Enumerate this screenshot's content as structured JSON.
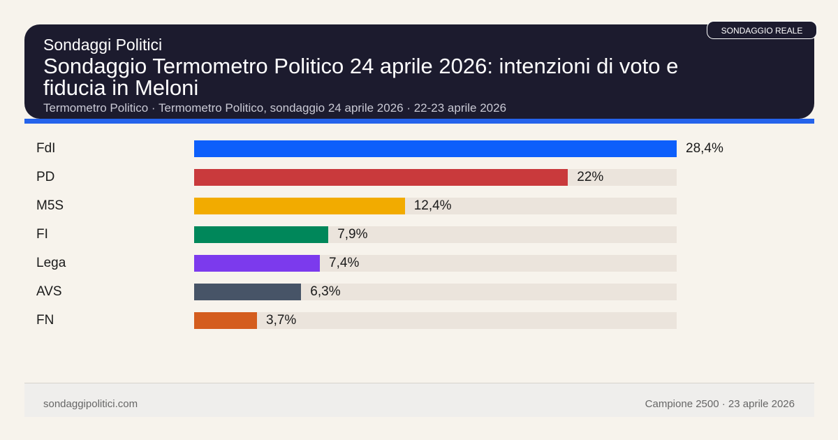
{
  "header": {
    "kicker": "Sondaggi Politici",
    "title": "Sondaggio Termometro Politico 24 aprile 2026: intenzioni di voto e fiducia in Meloni",
    "subtitle": "Termometro Politico · Termometro Politico, sondaggio 24 aprile 2026 · 22-23 aprile 2026",
    "badge": "SONDAGGIO REALE"
  },
  "colors": {
    "header_bg": "#1c1b2e",
    "accent": "#2563eb",
    "track": "#ebe4dc"
  },
  "chart_data": {
    "type": "bar",
    "orientation": "horizontal",
    "categories": [
      "FdI",
      "PD",
      "M5S",
      "FI",
      "Lega",
      "AVS",
      "FN"
    ],
    "values": [
      28.4,
      22,
      12.4,
      7.9,
      7.4,
      6.3,
      3.7
    ],
    "labels": [
      "28,4%",
      "22%",
      "12,4%",
      "7,9%",
      "7,4%",
      "6,3%",
      "3,7%"
    ],
    "colors": [
      "#0d5ffb",
      "#c93a3c",
      "#f2ab00",
      "#00875a",
      "#7c3aed",
      "#475467",
      "#d45d1e"
    ],
    "xlim": [
      0,
      28.4
    ],
    "grid": false
  },
  "footer": {
    "left": "sondaggipolitici.com",
    "right": "Campione 2500 · 23 aprile 2026"
  }
}
